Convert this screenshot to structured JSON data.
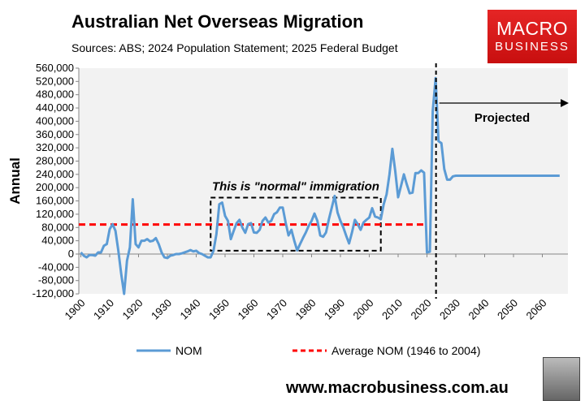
{
  "header": {
    "title": "Australian Net Overseas Migration",
    "subtitle": "Sources: ABS; 2024 Population Statement; 2025 Federal Budget"
  },
  "logo": {
    "line1": "MACRO",
    "line2": "BUSINESS",
    "color": "#e01b1b"
  },
  "footer": {
    "url": "www.macrobusiness.com.au"
  },
  "chart_data": {
    "type": "line",
    "ylabel": "Annual",
    "ylim": [
      -120000,
      560000
    ],
    "xlim": [
      1900,
      2070
    ],
    "yticks": [
      -120000,
      -80000,
      -40000,
      0,
      40000,
      80000,
      120000,
      160000,
      200000,
      240000,
      280000,
      320000,
      360000,
      400000,
      440000,
      480000,
      520000,
      560000
    ],
    "ytick_labels": [
      "-120,000",
      "-80,000",
      "-40,000",
      "0",
      "40,000",
      "80,000",
      "120,000",
      "160,000",
      "200,000",
      "240,000",
      "280,000",
      "320,000",
      "360,000",
      "400,000",
      "440,000",
      "480,000",
      "520,000",
      "560,000"
    ],
    "xticks": [
      1900,
      1910,
      1920,
      1930,
      1940,
      1950,
      1960,
      1970,
      1980,
      1990,
      2000,
      2010,
      2020,
      2030,
      2040,
      2050,
      2060
    ],
    "grid": false,
    "legend_placement": "bottom",
    "series": [
      {
        "name": "NOM",
        "color": "#5b9bd5",
        "x": [
          1900,
          1901,
          1902,
          1903,
          1904,
          1905,
          1906,
          1907,
          1908,
          1909,
          1910,
          1911,
          1912,
          1913,
          1914,
          1915,
          1916,
          1917,
          1918,
          1919,
          1920,
          1921,
          1922,
          1923,
          1924,
          1925,
          1926,
          1927,
          1928,
          1929,
          1930,
          1931,
          1932,
          1933,
          1934,
          1935,
          1936,
          1937,
          1938,
          1939,
          1940,
          1941,
          1942,
          1943,
          1944,
          1945,
          1946,
          1947,
          1948,
          1949,
          1950,
          1951,
          1952,
          1953,
          1954,
          1955,
          1956,
          1957,
          1958,
          1959,
          1960,
          1961,
          1962,
          1963,
          1964,
          1965,
          1966,
          1967,
          1968,
          1969,
          1970,
          1971,
          1972,
          1973,
          1974,
          1975,
          1976,
          1977,
          1978,
          1979,
          1980,
          1981,
          1982,
          1983,
          1984,
          1985,
          1986,
          1987,
          1988,
          1989,
          1990,
          1991,
          1992,
          1993,
          1994,
          1995,
          1996,
          1997,
          1998,
          1999,
          2000,
          2001,
          2002,
          2003,
          2004,
          2005,
          2006,
          2007,
          2008,
          2009,
          2010,
          2011,
          2012,
          2013,
          2014,
          2015,
          2016,
          2017,
          2018,
          2019,
          2020,
          2021,
          2022,
          2023,
          2024,
          2025,
          2026,
          2027,
          2028,
          2029,
          2030,
          2031,
          2032,
          2033,
          2034,
          2035,
          2036,
          2037,
          2038,
          2039,
          2040,
          2041,
          2042,
          2043,
          2044,
          2045,
          2046,
          2047,
          2048,
          2049,
          2050,
          2051,
          2052,
          2053,
          2054,
          2055,
          2056,
          2057,
          2058,
          2059,
          2060,
          2061,
          2062,
          2063,
          2064,
          2065,
          2066
        ],
        "values": [
          5000,
          -5000,
          -10000,
          -3000,
          -3000,
          -5000,
          5000,
          5000,
          25000,
          30000,
          75000,
          90000,
          70000,
          10000,
          -60000,
          -120000,
          -20000,
          20000,
          165000,
          30000,
          20000,
          40000,
          40000,
          45000,
          38000,
          40000,
          48000,
          30000,
          5000,
          -10000,
          -12000,
          -5000,
          -3000,
          0,
          0,
          2000,
          5000,
          8000,
          12000,
          8000,
          10000,
          3000,
          0,
          -5000,
          -10000,
          -10000,
          10000,
          60000,
          150000,
          155000,
          115000,
          100000,
          45000,
          70000,
          93000,
          103000,
          80000,
          64000,
          90000,
          93000,
          65000,
          64000,
          73000,
          100000,
          110000,
          95000,
          100000,
          120000,
          126000,
          140000,
          140000,
          95000,
          56000,
          73000,
          40000,
          11000,
          30000,
          48000,
          65000,
          85000,
          100000,
          122000,
          100000,
          56000,
          52000,
          65000,
          105000,
          140000,
          175000,
          125000,
          100000,
          80000,
          55000,
          32000,
          65000,
          103000,
          90000,
          73000,
          95000,
          103000,
          110000,
          138000,
          113000,
          110000,
          105000,
          150000,
          180000,
          240000,
          317000,
          250000,
          171000,
          205000,
          240000,
          210000,
          183000,
          185000,
          244000,
          244000,
          252000,
          245000,
          5000,
          7000,
          430000,
          530000,
          340000,
          334000,
          256000,
          224000,
          224000,
          234000,
          236000,
          236000,
          236000,
          236000,
          236000,
          236000,
          236000,
          236000,
          236000,
          236000,
          236000,
          236000,
          236000,
          236000,
          236000,
          236000,
          236000,
          236000,
          236000,
          236000,
          236000,
          236000,
          236000,
          236000,
          236000,
          236000,
          236000,
          236000,
          236000,
          236000,
          236000,
          236000,
          236000,
          236000,
          236000,
          236000,
          236000
        ]
      },
      {
        "name": "Average NOM (1946 to 2004)",
        "color": "#ff0000",
        "style": "dashed",
        "x": [
          1900,
          2019
        ],
        "values": [
          89000,
          89000
        ]
      }
    ],
    "annotations": {
      "box_label": "This is \"normal\" immigration",
      "box_years": [
        1945,
        2004
      ],
      "box_values": [
        10000,
        170000
      ],
      "projection_start": 2023,
      "projected_label": "Projected"
    }
  }
}
